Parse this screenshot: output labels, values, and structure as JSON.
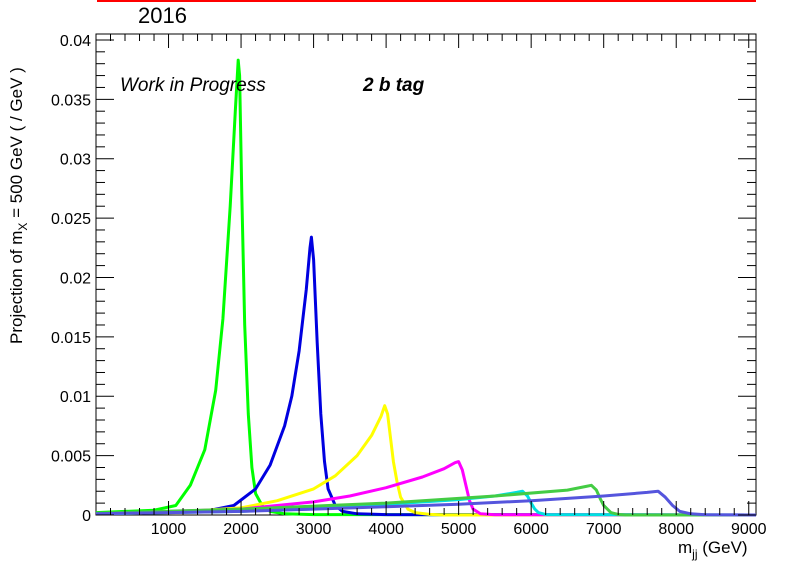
{
  "header": {
    "year": "2016",
    "bar_color": "#ff0000"
  },
  "annotations": {
    "status": "Work in Progress",
    "tag": "2 b tag"
  },
  "chart_data": {
    "type": "line",
    "title": "",
    "xlabel": "m",
    "xlabel_sub": "jj",
    "xlabel_unit": " (GeV)",
    "ylabel": "Projection of m",
    "ylabel_sub": "X",
    "ylabel_rest": " = 500 GeV ( / GeV )",
    "xlim": [
      0,
      9100
    ],
    "ylim": [
      0,
      0.0405
    ],
    "grid": false,
    "legend": "none",
    "x_ticks": [
      1000,
      2000,
      3000,
      4000,
      5000,
      6000,
      7000,
      8000,
      9000
    ],
    "x_tick_labels": [
      "1000",
      "2000",
      "3000",
      "4000",
      "5000",
      "6000",
      "7000",
      "8000",
      "9000"
    ],
    "y_ticks": [
      0,
      0.005,
      0.01,
      0.015,
      0.02,
      0.025,
      0.03,
      0.035,
      0.04
    ],
    "y_tick_labels": [
      "0",
      "0.005",
      "0.01",
      "0.015",
      "0.02",
      "0.025",
      "0.03",
      "0.035",
      "0.04"
    ],
    "series": [
      {
        "color": "#00ff00",
        "x": [
          0,
          800,
          1100,
          1300,
          1500,
          1650,
          1750,
          1850,
          1920,
          1960,
          1980,
          2010,
          2050,
          2100,
          2150,
          2200,
          2300,
          2400,
          2600,
          3000,
          9100
        ],
        "y": [
          0.0002,
          0.0004,
          0.0008,
          0.0025,
          0.0055,
          0.0105,
          0.0165,
          0.026,
          0.034,
          0.0383,
          0.037,
          0.027,
          0.016,
          0.0085,
          0.004,
          0.0018,
          0.0007,
          0.0003,
          0.0001,
          3e-05,
          0
        ]
      },
      {
        "color": "#0000e0",
        "x": [
          0,
          1500,
          1900,
          2200,
          2400,
          2600,
          2700,
          2800,
          2900,
          2950,
          2970,
          3000,
          3050,
          3100,
          3150,
          3200,
          3300,
          3400,
          3600,
          4000,
          9100
        ],
        "y": [
          0.0001,
          0.0003,
          0.0008,
          0.0022,
          0.0042,
          0.0075,
          0.01,
          0.0138,
          0.019,
          0.0225,
          0.0234,
          0.0215,
          0.0145,
          0.0085,
          0.0045,
          0.0022,
          0.0008,
          0.0003,
          0.0001,
          3e-05,
          0
        ]
      },
      {
        "color": "#ffff00",
        "x": [
          0,
          1000,
          2000,
          2500,
          3000,
          3300,
          3600,
          3800,
          3930,
          3980,
          4020,
          4060,
          4100,
          4150,
          4200,
          4300,
          4400,
          4600,
          4800,
          9100
        ],
        "y": [
          0.0001,
          0.0002,
          0.0006,
          0.0012,
          0.0022,
          0.0033,
          0.005,
          0.0067,
          0.0083,
          0.0092,
          0.0085,
          0.0065,
          0.0045,
          0.0028,
          0.0015,
          0.0005,
          0.0002,
          5e-05,
          0,
          0
        ]
      },
      {
        "color": "#ff00ff",
        "x": [
          0,
          2000,
          3000,
          3500,
          4000,
          4500,
          4800,
          4950,
          5000,
          5050,
          5100,
          5150,
          5200,
          5300,
          5500,
          9100
        ],
        "y": [
          0.0001,
          0.0005,
          0.0011,
          0.0016,
          0.0023,
          0.0032,
          0.0039,
          0.0044,
          0.0045,
          0.0038,
          0.0025,
          0.0012,
          0.0005,
          0.0001,
          2e-05,
          0
        ]
      },
      {
        "color": "#00e0e0",
        "x": [
          0,
          2000,
          3000,
          4000,
          5000,
          5500,
          5800,
          5880,
          5950,
          6000,
          6050,
          6100,
          6200,
          9100
        ],
        "y": [
          0.0001,
          0.0003,
          0.0006,
          0.0009,
          0.0013,
          0.0016,
          0.0019,
          0.002,
          0.0016,
          0.001,
          0.0005,
          0.0002,
          3e-05,
          0
        ]
      },
      {
        "color": "#44cc44",
        "x": [
          0,
          2000,
          4000,
          5500,
          6500,
          6750,
          6830,
          6900,
          6950,
          7000,
          7100,
          7200,
          7300,
          9100
        ],
        "y": [
          0.00015,
          0.0005,
          0.001,
          0.0016,
          0.0021,
          0.0024,
          0.0025,
          0.0021,
          0.0014,
          0.0008,
          0.0002,
          5e-05,
          0,
          0
        ]
      },
      {
        "color": "#5555dd",
        "x": [
          0,
          1000,
          2000,
          3000,
          4000,
          5000,
          6000,
          7000,
          7600,
          7750,
          7850,
          7950,
          8050,
          8200,
          8400,
          9100
        ],
        "y": [
          0.0001,
          0.0002,
          0.0003,
          0.0005,
          0.0007,
          0.0009,
          0.0012,
          0.0016,
          0.0019,
          0.002,
          0.0015,
          0.0008,
          0.0003,
          0.0001,
          2e-05,
          0
        ]
      }
    ]
  }
}
